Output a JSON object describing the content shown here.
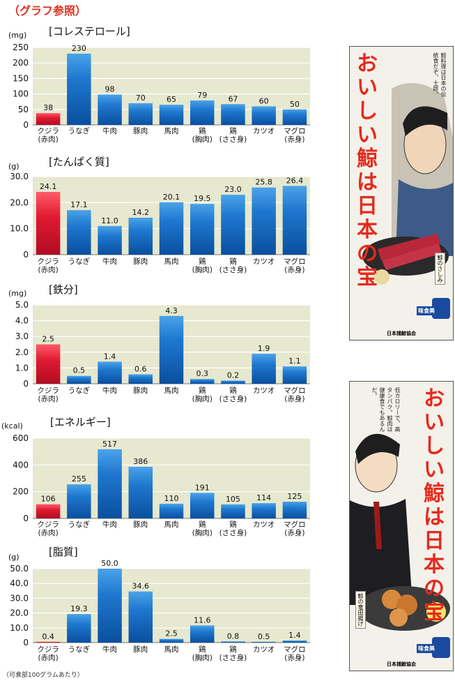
{
  "page": {
    "title": "（グラフ参照）",
    "footnote": "（可食部100グラムあたり）"
  },
  "chart_data": [
    {
      "type": "bar",
      "title": "[コレステロール]",
      "unit": "(mg)",
      "categories": [
        [
          "クジラ",
          "(赤肉)"
        ],
        [
          "うなぎ"
        ],
        [
          "牛肉"
        ],
        [
          "豚肉"
        ],
        [
          "馬肉"
        ],
        [
          "鶏",
          "(胸肉)"
        ],
        [
          "鶏",
          "(ささ身)"
        ],
        [
          "カツオ"
        ],
        [
          "マグロ",
          "(赤身)"
        ]
      ],
      "values": [
        38,
        230,
        98,
        70,
        65,
        79,
        67,
        60,
        50
      ],
      "value_labels": [
        "38",
        "230",
        "98",
        "70",
        "65",
        "79",
        "67",
        "60",
        "50"
      ],
      "ylim": [
        0,
        250
      ],
      "yticks": [
        0,
        50,
        100,
        150,
        200,
        250
      ],
      "ytick_labels": [
        "0",
        "50",
        "100",
        "150",
        "200",
        "250"
      ],
      "highlight_index": 0,
      "grid": true
    },
    {
      "type": "bar",
      "title": "[たんぱく質]",
      "unit": "(g)",
      "categories": [
        [
          "クジラ",
          "(赤肉)"
        ],
        [
          "うなぎ"
        ],
        [
          "牛肉"
        ],
        [
          "豚肉"
        ],
        [
          "馬肉"
        ],
        [
          "鶏",
          "(胸肉)"
        ],
        [
          "鶏",
          "(ささ身)"
        ],
        [
          "カツオ"
        ],
        [
          "マグロ",
          "(赤身)"
        ]
      ],
      "values": [
        24.1,
        17.1,
        11.0,
        14.2,
        20.1,
        19.5,
        23.0,
        25.8,
        26.4
      ],
      "value_labels": [
        "24.1",
        "17.1",
        "11.0",
        "14.2",
        "20.1",
        "19.5",
        "23.0",
        "25.8",
        "26.4"
      ],
      "ylim": [
        0,
        30
      ],
      "yticks": [
        0,
        10,
        20,
        30
      ],
      "ytick_labels": [
        "0",
        "10.0",
        "20.0",
        "30.0"
      ],
      "highlight_index": 0,
      "grid": true
    },
    {
      "type": "bar",
      "title": "[鉄分]",
      "unit": "(mg)",
      "categories": [
        [
          "クジラ",
          "(赤肉)"
        ],
        [
          "うなぎ"
        ],
        [
          "牛肉"
        ],
        [
          "豚肉"
        ],
        [
          "馬肉"
        ],
        [
          "鶏",
          "(胸肉)"
        ],
        [
          "鶏",
          "(ささ身)"
        ],
        [
          "カツオ"
        ],
        [
          "マグロ",
          "(赤身)"
        ]
      ],
      "values": [
        2.5,
        0.5,
        1.4,
        0.6,
        4.3,
        0.3,
        0.2,
        1.9,
        1.1
      ],
      "value_labels": [
        "2.5",
        "0.5",
        "1.4",
        "0.6",
        "4.3",
        "0.3",
        "0.2",
        "1.9",
        "1.1"
      ],
      "ylim": [
        0,
        5
      ],
      "yticks": [
        0,
        1,
        2,
        3,
        4,
        5
      ],
      "ytick_labels": [
        "0",
        "1.0",
        "2.0",
        "3.0",
        "4.0",
        "5.0"
      ],
      "highlight_index": 0,
      "grid": true
    },
    {
      "type": "bar",
      "title": "[エネルギー]",
      "unit": "(kcal)",
      "categories": [
        [
          "クジラ",
          "(赤肉)"
        ],
        [
          "うなぎ"
        ],
        [
          "牛肉"
        ],
        [
          "豚肉"
        ],
        [
          "馬肉"
        ],
        [
          "鶏",
          "(胸肉)"
        ],
        [
          "鶏",
          "(ささ身)"
        ],
        [
          "カツオ"
        ],
        [
          "マグロ",
          "(赤身)"
        ]
      ],
      "values": [
        106,
        255,
        517,
        386,
        110,
        191,
        105,
        114,
        125
      ],
      "value_labels": [
        "106",
        "255",
        "517",
        "386",
        "110",
        "191",
        "105",
        "114",
        "125"
      ],
      "ylim": [
        0,
        600
      ],
      "yticks": [
        0,
        200,
        400,
        600
      ],
      "ytick_labels": [
        "0",
        "200",
        "400",
        "600"
      ],
      "highlight_index": 0,
      "grid": true
    },
    {
      "type": "bar",
      "title": "[脂質]",
      "unit": "(g)",
      "categories": [
        [
          "クジラ",
          "(赤肉)"
        ],
        [
          "うなぎ"
        ],
        [
          "牛肉"
        ],
        [
          "豚肉"
        ],
        [
          "馬肉"
        ],
        [
          "鶏",
          "(胸肉)"
        ],
        [
          "鶏",
          "(ささ身)"
        ],
        [
          "カツオ"
        ],
        [
          "マグロ",
          "(赤身)"
        ]
      ],
      "values": [
        0.4,
        19.3,
        50.0,
        34.6,
        2.5,
        11.6,
        0.8,
        0.5,
        1.4
      ],
      "value_labels": [
        "0.4",
        "19.3",
        "50.0",
        "34.6",
        "2.5",
        "11.6",
        "0.8",
        "0.5",
        "1.4"
      ],
      "ylim": [
        0,
        50
      ],
      "yticks": [
        0,
        10,
        20,
        30,
        40,
        50
      ],
      "ytick_labels": [
        "0",
        "10.0",
        "20.0",
        "30.0",
        "40.0",
        "50.0"
      ],
      "highlight_index": 0,
      "grid": true
    }
  ],
  "posters": [
    {
      "title": "おいしい鯨は日本の宝",
      "quote": "鯨料理は日本の伝統食だぞ、士郎。",
      "dish": "鯨のさしみ",
      "badge": "味食美",
      "org": "日本捕鯨協会"
    },
    {
      "title": "おいしい鯨は日本の宝",
      "quote": "低カロリーで、高タンパク。鯨肉は健康食でもあるんだ。",
      "dish": "鯨の竜田揚げ",
      "badge": "味食美",
      "org": "日本捕鯨協会"
    }
  ],
  "colors": {
    "plot_bg": "#e6e8cf",
    "grid": "#ffffff",
    "bar_blue_top": "#4aa3e8",
    "bar_blue": "#0d5fb5",
    "bar_red_top": "#ff4e5e",
    "bar_red": "#d0102a",
    "title_red": "#e0301e"
  }
}
